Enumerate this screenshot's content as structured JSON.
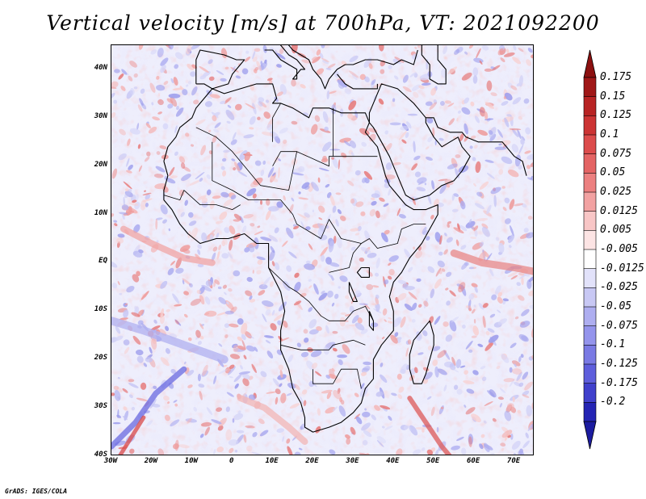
{
  "title": "Vertical velocity [m/s] at 700hPa, VT: 2021092200",
  "credit": "GrADS: IGES/COLA",
  "map": {
    "variable": "Vertical velocity",
    "units": "m/s",
    "level": "700hPa",
    "valid_time": "2021092200",
    "lon_range": [
      -30,
      75
    ],
    "lat_range": [
      -40,
      45
    ],
    "lat_ticks": [
      {
        "value": 40,
        "label": "40N"
      },
      {
        "value": 30,
        "label": "30N"
      },
      {
        "value": 20,
        "label": "20N"
      },
      {
        "value": 10,
        "label": "10N"
      },
      {
        "value": 0,
        "label": "EQ"
      },
      {
        "value": -10,
        "label": "10S"
      },
      {
        "value": -20,
        "label": "20S"
      },
      {
        "value": -30,
        "label": "30S"
      },
      {
        "value": -40,
        "label": "40S"
      }
    ],
    "lon_ticks": [
      {
        "value": -30,
        "label": "30W"
      },
      {
        "value": -20,
        "label": "20W"
      },
      {
        "value": -10,
        "label": "10W"
      },
      {
        "value": 0,
        "label": "0"
      },
      {
        "value": 10,
        "label": "10E"
      },
      {
        "value": 20,
        "label": "20E"
      },
      {
        "value": 30,
        "label": "30E"
      },
      {
        "value": 40,
        "label": "40E"
      },
      {
        "value": 50,
        "label": "50E"
      },
      {
        "value": 60,
        "label": "60E"
      },
      {
        "value": 70,
        "label": "70E"
      }
    ]
  },
  "colorbar": {
    "levels": [
      {
        "label": "0.175",
        "color": "#a01818"
      },
      {
        "label": "0.15",
        "color": "#b82424"
      },
      {
        "label": "0.125",
        "color": "#cc3434"
      },
      {
        "label": "0.1",
        "color": "#dc4c4c"
      },
      {
        "label": "0.075",
        "color": "#e46464"
      },
      {
        "label": "0.05",
        "color": "#ec8080"
      },
      {
        "label": "0.025",
        "color": "#f2a2a2"
      },
      {
        "label": "0.0125",
        "color": "#f8c6c6"
      },
      {
        "label": "0.005",
        "color": "#fce4e4"
      },
      {
        "label": "-0.005",
        "color": "#ffffff"
      },
      {
        "label": "-0.0125",
        "color": "#e2e2fa"
      },
      {
        "label": "-0.025",
        "color": "#c8c8f4"
      },
      {
        "label": "-0.05",
        "color": "#aeaef0"
      },
      {
        "label": "-0.075",
        "color": "#9494ec"
      },
      {
        "label": "-0.1",
        "color": "#7a7ae4"
      },
      {
        "label": "-0.125",
        "color": "#5e5edc"
      },
      {
        "label": "-0.175",
        "color": "#4040cc"
      },
      {
        "label": "-0.2",
        "color": "#2424b4"
      }
    ],
    "top_triangle_color": "#8c1010",
    "bottom_triangle_color": "#1c1ca0"
  }
}
